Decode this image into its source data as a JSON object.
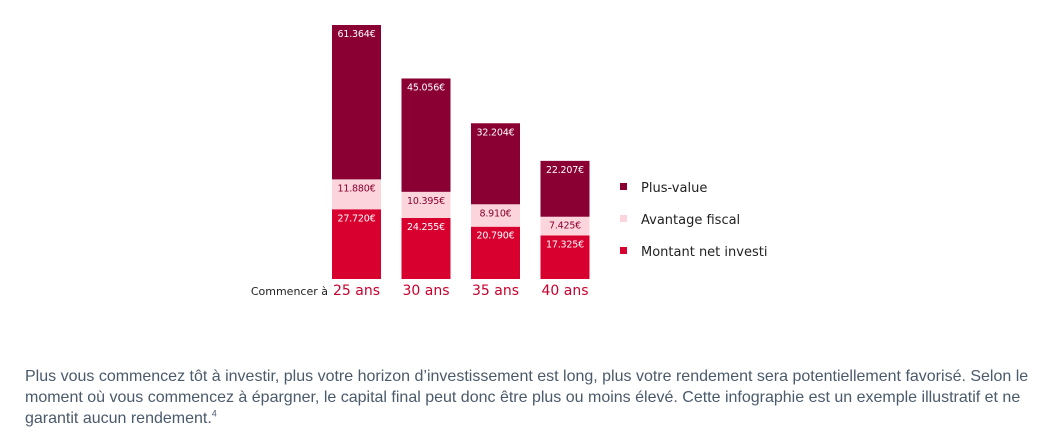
{
  "chart_data": {
    "type": "bar",
    "stacked": true,
    "axis_prefix": "Commencer à",
    "categories": [
      "25 ans",
      "30 ans",
      "35 ans",
      "40 ans"
    ],
    "series": [
      {
        "name": "Montant net investi",
        "values": [
          27720,
          24255,
          20790,
          17325
        ],
        "labels": [
          "27.720€",
          "24.255€",
          "20.790€",
          "17.325€"
        ],
        "color": "#d8002e",
        "label_color": "#ffffff"
      },
      {
        "name": "Avantage fiscal",
        "values": [
          11880,
          10395,
          8910,
          7425
        ],
        "labels": [
          "11.880€",
          "10.395€",
          "8.910€",
          "7.425€"
        ],
        "color": "#fcd4dc",
        "label_color": "#8b0030"
      },
      {
        "name": "Plus-value",
        "values": [
          61364,
          45056,
          32204,
          22207
        ],
        "labels": [
          "61.364€",
          "45.056€",
          "32.204€",
          "22.207€"
        ],
        "color": "#8b0033",
        "label_color": "#ffffff"
      }
    ],
    "legend_order": [
      "Plus-value",
      "Avantage fiscal",
      "Montant net investi"
    ],
    "legend_position": "right",
    "ylim": [
      0,
      100964
    ],
    "grid": false,
    "category_label_color": "#c8002c"
  },
  "caption": {
    "text": "Plus vous commencez tôt à investir, plus votre horizon d’investissement est long, plus votre rendement sera potentiellement favorisé. Selon le moment où vous commencez à épargner, le capital final peut donc être plus ou moins élevé. Cette infographie est un exemple illustratif et ne garantit aucun rendement.",
    "footnote": "4"
  }
}
